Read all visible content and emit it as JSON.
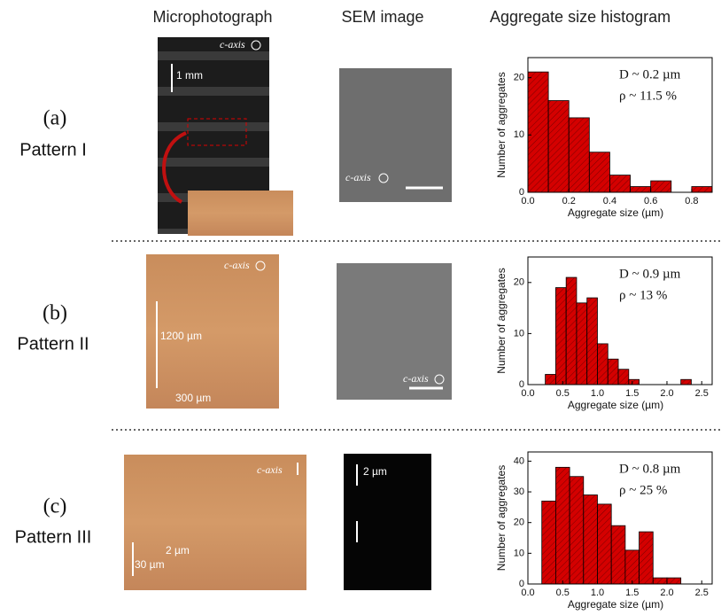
{
  "columns": [
    "Microphotograph",
    "SEM image",
    "Aggregate size histogram"
  ],
  "rows": [
    {
      "label": "(a)",
      "name": "Pattern I",
      "micro_labels": [
        "c-axis",
        "1 mm"
      ],
      "sem_labels": [
        "c-axis"
      ]
    },
    {
      "label": "(b)",
      "name": "Pattern II",
      "micro_labels": [
        "c-axis",
        "1200 µm",
        "300 µm"
      ],
      "sem_labels": [
        "c-axis"
      ]
    },
    {
      "label": "(c)",
      "name": "Pattern III",
      "micro_labels": [
        "c-axis",
        "2 µm",
        "30 µm"
      ],
      "sem_labels": [
        "2 µm"
      ]
    }
  ],
  "chart_data": [
    {
      "type": "histogram",
      "color": "#d40000",
      "xlabel": "Aggregate size (µm)",
      "ylabel": "Number of aggregates",
      "annotations": [
        "D ~ 0.2 µm",
        "ρ ~ 11.5 %"
      ],
      "bins": [
        0,
        0.1,
        0.2,
        0.3,
        0.4,
        0.5,
        0.6,
        0.7,
        0.8,
        0.9
      ],
      "values": [
        21,
        16,
        13,
        7,
        3,
        1,
        2,
        0,
        1
      ],
      "xlim": [
        0,
        0.9
      ],
      "ylim": [
        0,
        23.5
      ],
      "xticks": [
        {
          "value": 0,
          "label": "0.0"
        },
        0.2,
        0.4,
        0.6,
        0.8
      ],
      "yticks": [
        0,
        10,
        20
      ]
    },
    {
      "type": "histogram",
      "color": "#d40000",
      "xlabel": "Aggregate size (µm)",
      "ylabel": "Number of aggregates",
      "annotations": [
        "D ~ 0.9 µm",
        "ρ ~ 13 %"
      ],
      "bins": [
        0.25,
        0.4,
        0.55,
        0.7,
        0.85,
        1.0,
        1.15,
        1.3,
        1.45,
        1.6,
        1.75,
        1.9,
        2.05,
        2.2,
        2.35
      ],
      "values": [
        2,
        19,
        21,
        16,
        17,
        8,
        5,
        3,
        1,
        0,
        0,
        0,
        0,
        1
      ],
      "xlim": [
        0,
        2.65
      ],
      "ylim": [
        0,
        25
      ],
      "xticks": [
        {
          "value": 0,
          "label": "0.0"
        },
        0.5,
        {
          "value": 1,
          "label": "1.0"
        },
        1.5,
        {
          "value": 2,
          "label": "2.0"
        },
        2.5
      ],
      "yticks": [
        0,
        10,
        20
      ]
    },
    {
      "type": "histogram",
      "color": "#d40000",
      "xlabel": "Aggregate size (µm)",
      "ylabel": "Number of aggregates",
      "annotations": [
        "D ~ 0.8 µm",
        "ρ ~ 25 %"
      ],
      "bins": [
        0.2,
        0.4,
        0.6,
        0.8,
        1.0,
        1.2,
        1.4,
        1.6,
        1.8,
        2.0,
        2.2
      ],
      "values": [
        27,
        38,
        35,
        29,
        26,
        19,
        11,
        17,
        2,
        2
      ],
      "xlim": [
        0,
        2.65
      ],
      "ylim": [
        0,
        43
      ],
      "xticks": [
        {
          "value": 0,
          "label": "0.0"
        },
        0.5,
        {
          "value": 1,
          "label": "1.0"
        },
        1.5,
        {
          "value": 2,
          "label": "2.0"
        },
        2.5
      ],
      "yticks": [
        0,
        10,
        20,
        30,
        40
      ]
    }
  ]
}
